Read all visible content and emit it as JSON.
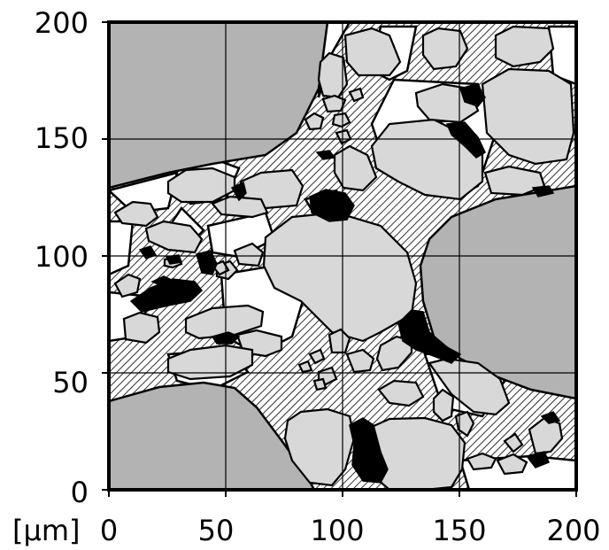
{
  "axis_unit": "[µm]",
  "x_ticks": [
    "0",
    "50",
    "100",
    "150",
    "200"
  ],
  "y_ticks": [
    "0",
    "50",
    "100",
    "150",
    "200"
  ],
  "colors": {
    "large_grain": "#b3b3b3",
    "grain": "#d8d8d8",
    "pore": "#ffffff",
    "matrix_hatch": "#000000",
    "dark_phase": "#000000",
    "outline": "#000000"
  }
}
